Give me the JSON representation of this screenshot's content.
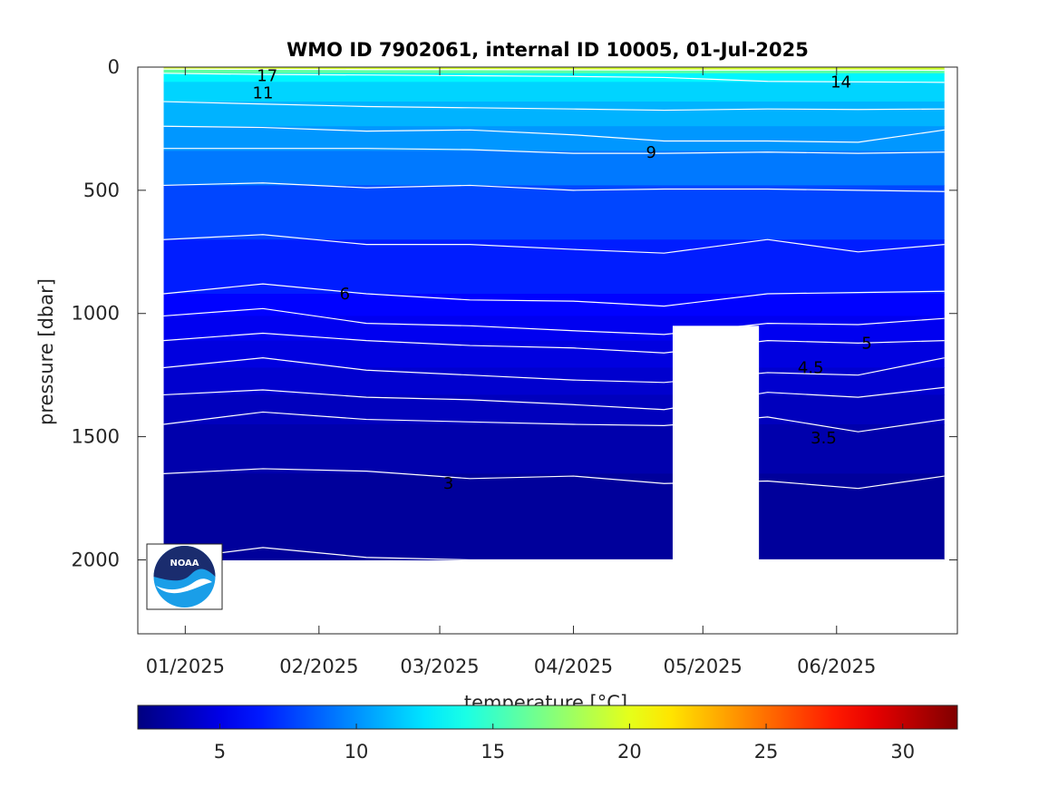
{
  "chart_data": {
    "type": "heatmap",
    "title": "WMO ID 7902061, internal ID 10005, 01-Jul-2025",
    "ylabel": "pressure [dbar]",
    "xlabel": "",
    "ylim": [
      0,
      2300
    ],
    "y_reversed": true,
    "yticks": [
      0,
      500,
      1000,
      1500,
      2000
    ],
    "ytick_labels": [
      "0",
      "500",
      "1000",
      "1500",
      "2000"
    ],
    "xlim": [
      "2024-12-21",
      "2025-06-29"
    ],
    "xticks": [
      "2025-01-01",
      "2025-02-01",
      "2025-03-01",
      "2025-04-01",
      "2025-05-01",
      "2025-06-01"
    ],
    "xtick_labels": [
      "01/2025",
      "02/2025",
      "03/2025",
      "04/2025",
      "05/2025",
      "06/2025"
    ],
    "data_extent": {
      "x": [
        "2024-12-27",
        "2025-06-26"
      ],
      "pressure_max": 2000
    },
    "data_gap": {
      "x": [
        "2025-04-24",
        "2025-05-14"
      ],
      "pressure_from": 1050
    },
    "colorbar": {
      "label": "temperature [°C]",
      "range": [
        2,
        32
      ],
      "ticks": [
        5,
        10,
        15,
        20,
        25,
        30
      ],
      "tick_labels": [
        "5",
        "10",
        "15",
        "20",
        "25",
        "30"
      ],
      "colormap": "jet"
    },
    "temperature_bands": [
      {
        "from": 0,
        "to": 10,
        "temperature": 19.5
      },
      {
        "from": 10,
        "to": 25,
        "temperature": 16
      },
      {
        "from": 25,
        "to": 60,
        "temperature": 13
      },
      {
        "from": 60,
        "to": 140,
        "temperature": 12
      },
      {
        "from": 140,
        "to": 240,
        "temperature": 11
      },
      {
        "from": 240,
        "to": 340,
        "temperature": 10.2
      },
      {
        "from": 340,
        "to": 480,
        "temperature": 9.3
      },
      {
        "from": 480,
        "to": 700,
        "temperature": 7.8
      },
      {
        "from": 700,
        "to": 920,
        "temperature": 6.6
      },
      {
        "from": 920,
        "to": 1010,
        "temperature": 5.8
      },
      {
        "from": 1010,
        "to": 1110,
        "temperature": 5.3
      },
      {
        "from": 1110,
        "to": 1220,
        "temperature": 4.8
      },
      {
        "from": 1220,
        "to": 1330,
        "temperature": 4.3
      },
      {
        "from": 1330,
        "to": 1450,
        "temperature": 3.8
      },
      {
        "from": 1450,
        "to": 1650,
        "temperature": 3.3
      },
      {
        "from": 1650,
        "to": 2000,
        "temperature": 2.8
      }
    ],
    "contours": [
      {
        "level": 17,
        "label": "17",
        "pressure": [
          8,
          9,
          10,
          10,
          11,
          12,
          12,
          12,
          13
        ]
      },
      {
        "level": 14,
        "label": "14",
        "pressure": [
          25,
          30,
          32,
          35,
          38,
          42,
          58,
          60,
          62
        ]
      },
      {
        "level": 11,
        "label": "11",
        "pressure": [
          140,
          150,
          160,
          165,
          170,
          175,
          170,
          172,
          170
        ]
      },
      {
        "level": 10,
        "label": "",
        "pressure": [
          240,
          245,
          260,
          255,
          275,
          300,
          300,
          305,
          255
        ]
      },
      {
        "level": 9,
        "label": "9",
        "pressure": [
          330,
          330,
          330,
          335,
          350,
          350,
          345,
          350,
          345
        ]
      },
      {
        "level": 8,
        "label": "",
        "pressure": [
          480,
          470,
          490,
          480,
          500,
          495,
          495,
          500,
          505
        ]
      },
      {
        "level": 7,
        "label": "",
        "pressure": [
          700,
          680,
          720,
          720,
          740,
          755,
          700,
          750,
          720
        ]
      },
      {
        "level": 6,
        "label": "6",
        "pressure": [
          920,
          880,
          920,
          945,
          950,
          970,
          920,
          915,
          910
        ]
      },
      {
        "level": 5.5,
        "label": "",
        "pressure": [
          1010,
          980,
          1040,
          1050,
          1070,
          1085,
          1040,
          1045,
          1020
        ]
      },
      {
        "level": 5,
        "label": "5",
        "pressure": [
          1110,
          1080,
          1110,
          1130,
          1140,
          1160,
          1110,
          1120,
          1110
        ]
      },
      {
        "level": 4.5,
        "label": "4.5",
        "pressure": [
          1220,
          1180,
          1230,
          1250,
          1270,
          1280,
          1240,
          1250,
          1180
        ]
      },
      {
        "level": 4,
        "label": "",
        "pressure": [
          1330,
          1310,
          1340,
          1350,
          1370,
          1390,
          1320,
          1340,
          1300
        ]
      },
      {
        "level": 3.5,
        "label": "3.5",
        "pressure": [
          1450,
          1400,
          1430,
          1440,
          1450,
          1455,
          1420,
          1480,
          1430
        ]
      },
      {
        "level": 3,
        "label": "3",
        "pressure": [
          1650,
          1630,
          1640,
          1670,
          1660,
          1690,
          1680,
          1710,
          1660
        ]
      },
      {
        "level": 2.5,
        "label": "",
        "pressure": [
          2000,
          1950,
          1990,
          2000,
          2000,
          2000,
          2000,
          2000,
          2000
        ]
      }
    ],
    "contour_x": [
      "2024-12-27",
      "2025-01-19",
      "2025-02-12",
      "2025-03-08",
      "2025-04-01",
      "2025-04-22",
      "2025-05-16",
      "2025-06-06",
      "2025-06-26"
    ],
    "label_positions": [
      {
        "label": "17",
        "x": "2025-01-20",
        "y": 35
      },
      {
        "label": "14",
        "x": "2025-06-02",
        "y": 60
      },
      {
        "label": "11",
        "x": "2025-01-19",
        "y": 105
      },
      {
        "label": "9",
        "x": "2025-04-19",
        "y": 345
      },
      {
        "label": "6",
        "x": "2025-02-07",
        "y": 920
      },
      {
        "label": "5",
        "x": "2025-06-08",
        "y": 1120
      },
      {
        "label": "4.5",
        "x": "2025-05-26",
        "y": 1220
      },
      {
        "label": "3.5",
        "x": "2025-05-29",
        "y": 1505
      },
      {
        "label": "3",
        "x": "2025-03-03",
        "y": 1690
      }
    ]
  },
  "logo": {
    "text": "NOAA",
    "name": "noaa-logo"
  }
}
